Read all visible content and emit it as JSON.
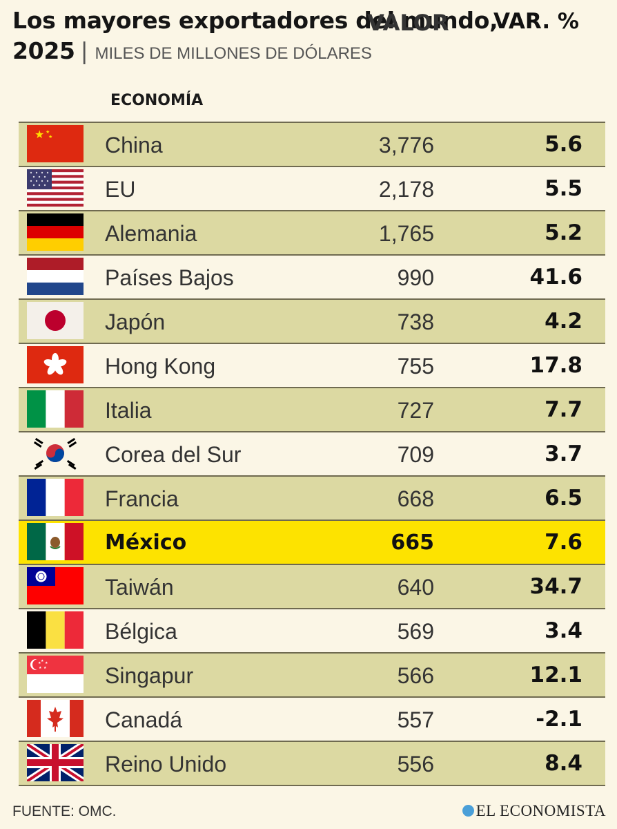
{
  "title": {
    "line1": "Los mayores exportadores del mundo,",
    "year": "2025",
    "separator": "|",
    "subtitle": "MILES DE MILLONES DE DÓLARES"
  },
  "headers": {
    "economy": "ECONOMÍA",
    "value": "VALOR",
    "change": "VAR. %"
  },
  "chart_data": {
    "type": "table",
    "columns": [
      "ECONOMÍA",
      "VALOR",
      "VAR. %"
    ],
    "rows": [
      {
        "flag": "china-flag-icon",
        "name": "China",
        "value": "3,776",
        "change": "5.6",
        "style": "band"
      },
      {
        "flag": "usa-flag-icon",
        "name": "EU",
        "value": "2,178",
        "change": "5.5",
        "style": "plain"
      },
      {
        "flag": "germany-flag-icon",
        "name": "Alemania",
        "value": "1,765",
        "change": "5.2",
        "style": "band"
      },
      {
        "flag": "netherlands-flag-icon",
        "name": "Países Bajos",
        "value": "990",
        "change": "41.6",
        "style": "plain"
      },
      {
        "flag": "japan-flag-icon",
        "name": "Japón",
        "value": "738",
        "change": "4.2",
        "style": "band"
      },
      {
        "flag": "hong-kong-flag-icon",
        "name": "Hong Kong",
        "value": "755",
        "change": "17.8",
        "style": "plain"
      },
      {
        "flag": "italy-flag-icon",
        "name": "Italia",
        "value": "727",
        "change": "7.7",
        "style": "band"
      },
      {
        "flag": "south-korea-flag-icon",
        "name": "Corea del Sur",
        "value": "709",
        "change": "3.7",
        "style": "plain"
      },
      {
        "flag": "france-flag-icon",
        "name": "Francia",
        "value": "668",
        "change": "6.5",
        "style": "band"
      },
      {
        "flag": "mexico-flag-icon",
        "name": "México",
        "value": "665",
        "change": "7.6",
        "style": "hl"
      },
      {
        "flag": "taiwan-flag-icon",
        "name": "Taiwán",
        "value": "640",
        "change": "34.7",
        "style": "band"
      },
      {
        "flag": "belgium-flag-icon",
        "name": "Bélgica",
        "value": "569",
        "change": "3.4",
        "style": "plain"
      },
      {
        "flag": "singapore-flag-icon",
        "name": "Singapur",
        "value": "566",
        "change": "12.1",
        "style": "band"
      },
      {
        "flag": "canada-flag-icon",
        "name": "Canadá",
        "value": "557",
        "change": "-2.1",
        "style": "plain"
      },
      {
        "flag": "uk-flag-icon",
        "name": "Reino Unido",
        "value": "556",
        "change": "8.4",
        "style": "band"
      }
    ]
  },
  "colors": {
    "band": "#dcd9a2",
    "highlight": "#fde300",
    "background": "#fbf6e6"
  },
  "footer": {
    "source": "FUENTE: OMC.",
    "brand": "EL ECONOMISTA"
  }
}
